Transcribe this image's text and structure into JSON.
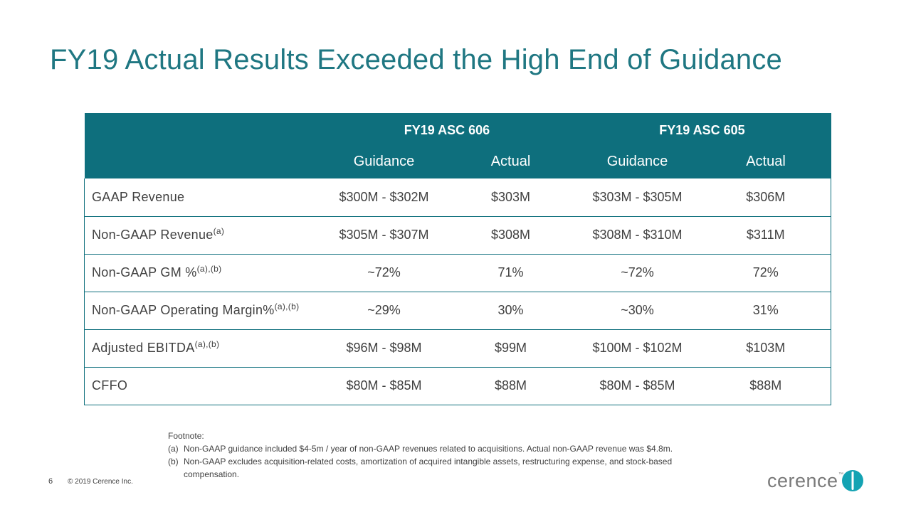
{
  "title": "FY19 Actual Results Exceeded the High End of Guidance",
  "table": {
    "groups": [
      "FY19 ASC 606",
      "FY19 ASC 605"
    ],
    "subheaders": [
      "Guidance",
      "Actual",
      "Guidance",
      "Actual"
    ],
    "rows": [
      {
        "label": "GAAP Revenue",
        "sup": "",
        "values": [
          "$300M - $302M",
          "$303M",
          "$303M - $305M",
          "$306M"
        ]
      },
      {
        "label": "Non-GAAP Revenue",
        "sup": "(a)",
        "values": [
          "$305M - $307M",
          "$308M",
          "$308M - $310M",
          "$311M"
        ]
      },
      {
        "label": "Non-GAAP GM %",
        "sup": "(a),(b)",
        "values": [
          "~72%",
          "71%",
          "~72%",
          "72%"
        ]
      },
      {
        "label": "Non-GAAP Operating Margin%",
        "sup": "(a),(b)",
        "values": [
          "~29%",
          "30%",
          "~30%",
          "31%"
        ]
      },
      {
        "label": "Adjusted EBITDA",
        "sup": "(a),(b)",
        "values": [
          "$96M - $98M",
          "$99M",
          "$100M - $102M",
          "$103M"
        ]
      },
      {
        "label": "CFFO",
        "sup": "",
        "values": [
          "$80M - $85M",
          "$88M",
          "$80M - $85M",
          "$88M"
        ]
      }
    ]
  },
  "footnote": {
    "heading": "Footnote:",
    "items": [
      {
        "mark": "(a)",
        "text": "Non-GAAP guidance included $4-5m / year of non-GAAP revenues related to acquisitions. Actual non-GAAP revenue was $4.8m."
      },
      {
        "mark": "(b)",
        "text": "Non-GAAP excludes acquisition-related costs, amortization of acquired intangible assets, restructuring expense, and stock-based compensation."
      }
    ]
  },
  "footer": {
    "page_number": "6",
    "copyright": "© 2019 Cerence Inc."
  },
  "logo": {
    "text": "cerence",
    "tm": "™",
    "color_text": "#7a7a7a",
    "color_mark": "#14a3b3"
  },
  "colors": {
    "accent": "#0e6f7d",
    "title": "#1f7782"
  }
}
